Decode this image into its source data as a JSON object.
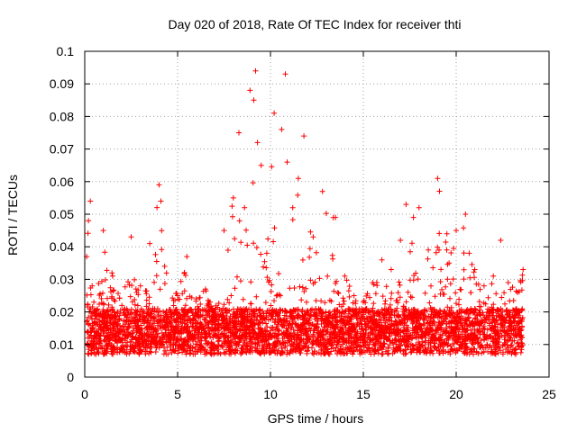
{
  "chart_data": {
    "type": "scatter",
    "title": "Day 020 of 2018, Rate Of TEC Index for receiver thti",
    "xlabel": "GPS time / hours",
    "ylabel": "ROTI / TECUs",
    "xlim": [
      0,
      25
    ],
    "ylim": [
      0,
      0.1
    ],
    "xticks": [
      0,
      5,
      10,
      15,
      20,
      25
    ],
    "xtick_labels": [
      "0",
      "5",
      "10",
      "15",
      "20",
      "25"
    ],
    "yticks": [
      0,
      0.01,
      0.02,
      0.03,
      0.04,
      0.05,
      0.06,
      0.07,
      0.08,
      0.09,
      0.1
    ],
    "ytick_labels": [
      "0",
      "0.01",
      "0.02",
      "0.03",
      "0.04",
      "0.05",
      "0.06",
      "0.07",
      "0.08",
      "0.09",
      "0.1"
    ],
    "grid": true,
    "marker": "+",
    "series": [
      {
        "name": "ROTI",
        "color": "#ff0000",
        "x": [
          0.1,
          0.2,
          0.3,
          0.4,
          0.6,
          1.0,
          1.5,
          2.0,
          2.5,
          3.0,
          3.5,
          4.0,
          4.1,
          4.3,
          5.0,
          5.5,
          6.0,
          6.5,
          7.0,
          7.5,
          8.0,
          8.3,
          8.6,
          8.9,
          9.1,
          9.2,
          9.3,
          9.5,
          9.8,
          10.2,
          10.6,
          10.8,
          10.9,
          11.2,
          11.5,
          11.8,
          12.3,
          12.8,
          13.5,
          14.0,
          14.5,
          15.0,
          15.5,
          16.0,
          16.5,
          17.0,
          17.3,
          17.7,
          18.0,
          18.5,
          19.0,
          19.5,
          20.0,
          20.5,
          20.7,
          21.0,
          21.5,
          22.0,
          22.4,
          22.8,
          23.3,
          23.6
        ],
        "y": [
          0.037,
          0.048,
          0.054,
          0.028,
          0.019,
          0.045,
          0.031,
          0.022,
          0.043,
          0.028,
          0.041,
          0.059,
          0.054,
          0.034,
          0.025,
          0.037,
          0.024,
          0.027,
          0.019,
          0.045,
          0.055,
          0.075,
          0.052,
          0.088,
          0.085,
          0.094,
          0.072,
          0.065,
          0.038,
          0.081,
          0.076,
          0.093,
          0.066,
          0.052,
          0.061,
          0.074,
          0.043,
          0.057,
          0.049,
          0.031,
          0.025,
          0.023,
          0.029,
          0.036,
          0.033,
          0.042,
          0.053,
          0.049,
          0.052,
          0.039,
          0.061,
          0.044,
          0.045,
          0.05,
          0.038,
          0.033,
          0.028,
          0.031,
          0.042,
          0.029,
          0.026,
          0.033
        ]
      }
    ]
  }
}
